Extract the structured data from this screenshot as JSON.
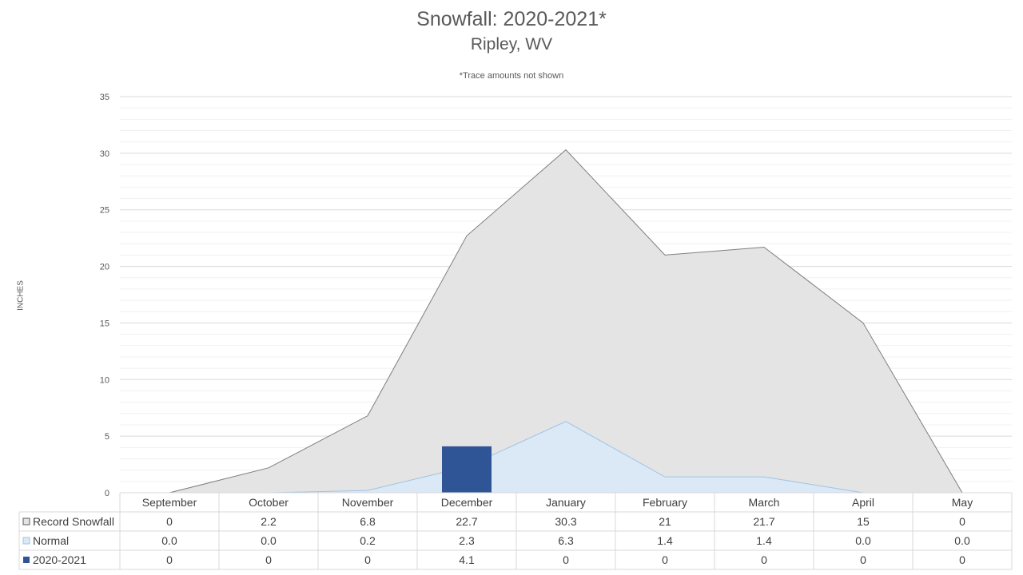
{
  "title": "Snowfall: 2020-2021*",
  "subtitle": "Ripley, WV",
  "note": "*Trace amounts not shown",
  "chart_data": {
    "type": "area",
    "title": "Snowfall: 2020-2021*",
    "subtitle": "Ripley, WV",
    "annotation": "*Trace amounts not shown",
    "xlabel": "",
    "ylabel": "INCHES",
    "ylim": [
      0,
      35
    ],
    "yticks": [
      0,
      5,
      10,
      15,
      20,
      25,
      30,
      35
    ],
    "grid": true,
    "legend_placement": "data-table",
    "categories": [
      "September",
      "October",
      "November",
      "December",
      "January",
      "February",
      "March",
      "April",
      "May"
    ],
    "series": [
      {
        "name": "Record Snowfall",
        "render": "area",
        "color": "#e4e4e4",
        "line_color": "#7f7f7f",
        "values": [
          0,
          2.2,
          6.8,
          22.7,
          30.3,
          21,
          21.7,
          15,
          0
        ],
        "labels": [
          "0",
          "2.2",
          "6.8",
          "22.7",
          "30.3",
          "21",
          "21.7",
          "15",
          "0"
        ]
      },
      {
        "name": "Normal",
        "render": "area",
        "color": "#dbe8f5",
        "line_color": "#9dc3e6",
        "values": [
          0.0,
          0.0,
          0.2,
          2.3,
          6.3,
          1.4,
          1.4,
          0.0,
          0.0
        ],
        "labels": [
          "0.0",
          "0.0",
          "0.2",
          "2.3",
          "6.3",
          "1.4",
          "1.4",
          "0.0",
          "0.0"
        ]
      },
      {
        "name": "2020-2021",
        "render": "bar",
        "color": "#2f5597",
        "values": [
          0,
          0,
          0,
          4.1,
          0,
          0,
          0,
          0,
          0
        ],
        "labels": [
          "0",
          "0",
          "0",
          "4.1",
          "0",
          "0",
          "0",
          "0",
          "0"
        ]
      }
    ]
  }
}
